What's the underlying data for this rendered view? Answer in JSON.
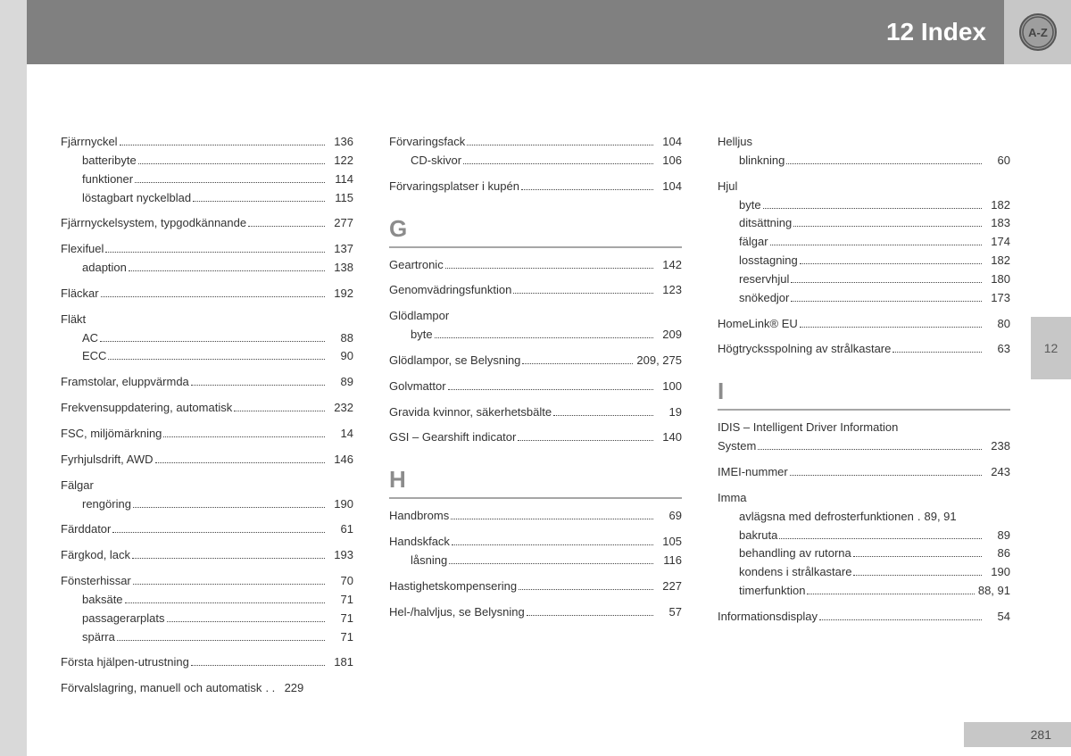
{
  "header": {
    "title": "12 Index",
    "icon_label": "A-Z"
  },
  "side_tab": "12",
  "page_number": "281",
  "colors": {
    "header_bg": "#808080",
    "margin_bg": "#d9d9d9",
    "tab_bg": "#c7c7c7",
    "text": "#333333",
    "letter": "#8c8c8c"
  },
  "columns": [
    {
      "sections": [
        {
          "entries": [
            {
              "label": "Fjärrnyckel",
              "page": "136"
            },
            {
              "label": "batteribyte",
              "page": "122",
              "sub": true
            },
            {
              "label": "funktioner",
              "page": "114",
              "sub": true
            },
            {
              "label": "löstagbart nyckelblad",
              "page": "115",
              "sub": true
            },
            {
              "gap": true
            },
            {
              "label": "Fjärrnyckelsystem, typgodkännande",
              "page": "277"
            },
            {
              "gap": true
            },
            {
              "label": "Flexifuel",
              "page": "137"
            },
            {
              "label": "adaption",
              "page": "138",
              "sub": true
            },
            {
              "gap": true
            },
            {
              "label": "Fläckar",
              "page": "192"
            },
            {
              "gap": true
            },
            {
              "label": "Fläkt",
              "nopages": true
            },
            {
              "label": "AC",
              "page": "88",
              "sub": true
            },
            {
              "label": "ECC",
              "page": "90",
              "sub": true
            },
            {
              "gap": true
            },
            {
              "label": "Framstolar, eluppvärmda",
              "page": "89"
            },
            {
              "gap": true
            },
            {
              "label": "Frekvensuppdatering, automatisk",
              "page": "232"
            },
            {
              "gap": true
            },
            {
              "label": "FSC, miljömärkning",
              "page": "14"
            },
            {
              "gap": true
            },
            {
              "label": "Fyrhjulsdrift, AWD",
              "page": "146"
            },
            {
              "gap": true
            },
            {
              "label": "Fälgar",
              "nopages": true
            },
            {
              "label": "rengöring",
              "page": "190",
              "sub": true
            },
            {
              "gap": true
            },
            {
              "label": "Färddator",
              "page": "61"
            },
            {
              "gap": true
            },
            {
              "label": "Färgkod, lack",
              "page": "193"
            },
            {
              "gap": true
            },
            {
              "label": "Fönsterhissar",
              "page": "70"
            },
            {
              "label": "baksäte",
              "page": "71",
              "sub": true
            },
            {
              "label": "passagerarplats",
              "page": "71",
              "sub": true
            },
            {
              "label": "spärra",
              "page": "71",
              "sub": true
            },
            {
              "gap": true
            },
            {
              "label": "Första hjälpen-utrustning",
              "page": "181"
            },
            {
              "gap": true
            },
            {
              "label": "Förvalslagring, manuell och automatisk",
              "dots_override": ". .",
              "page": "229"
            }
          ]
        }
      ]
    },
    {
      "sections": [
        {
          "entries": [
            {
              "label": "Förvaringsfack",
              "page": "104"
            },
            {
              "label": "CD-skivor",
              "page": "106",
              "sub": true
            },
            {
              "gap": true
            },
            {
              "label": "Förvaringsplatser i kupén",
              "page": "104"
            }
          ]
        },
        {
          "letter": "G",
          "entries": [
            {
              "label": "Geartronic",
              "page": "142"
            },
            {
              "gap": true
            },
            {
              "label": "Genomvädringsfunktion",
              "page": "123"
            },
            {
              "gap": true
            },
            {
              "label": "Glödlampor",
              "nopages": true
            },
            {
              "label": "byte",
              "page": "209",
              "sub": true
            },
            {
              "gap": true
            },
            {
              "label": "Glödlampor, se Belysning",
              "page": "209, 275"
            },
            {
              "gap": true
            },
            {
              "label": "Golvmattor",
              "page": "100"
            },
            {
              "gap": true
            },
            {
              "label": "Gravida kvinnor, säkerhetsbälte",
              "page": "19"
            },
            {
              "gap": true
            },
            {
              "label": "GSI – Gearshift indicator",
              "page": "140"
            }
          ]
        },
        {
          "letter": "H",
          "entries": [
            {
              "label": "Handbroms",
              "page": "69"
            },
            {
              "gap": true
            },
            {
              "label": "Handskfack",
              "page": "105"
            },
            {
              "label": "låsning",
              "page": "116",
              "sub": true
            },
            {
              "gap": true
            },
            {
              "label": "Hastighetskompensering",
              "page": "227"
            },
            {
              "gap": true
            },
            {
              "label": "Hel-/halvljus, se Belysning",
              "page": "57"
            }
          ]
        }
      ]
    },
    {
      "sections": [
        {
          "entries": [
            {
              "label": "Helljus",
              "nopages": true
            },
            {
              "label": "blinkning",
              "page": "60",
              "sub": true
            },
            {
              "gap": true
            },
            {
              "label": "Hjul",
              "nopages": true
            },
            {
              "label": "byte",
              "page": "182",
              "sub": true
            },
            {
              "label": "ditsättning",
              "page": "183",
              "sub": true
            },
            {
              "label": "fälgar",
              "page": "174",
              "sub": true
            },
            {
              "label": "losstagning",
              "page": "182",
              "sub": true
            },
            {
              "label": "reservhjul",
              "page": "180",
              "sub": true
            },
            {
              "label": "snökedjor",
              "page": "173",
              "sub": true
            },
            {
              "gap": true
            },
            {
              "label": "HomeLink® EU",
              "page": "80"
            },
            {
              "gap": true
            },
            {
              "label": "Högtrycksspolning av strålkastare",
              "page": "63"
            }
          ]
        },
        {
          "letter": "I",
          "entries": [
            {
              "label": "IDIS – Intelligent Driver Information System",
              "page": "238",
              "wrap": true
            },
            {
              "gap": true
            },
            {
              "label": "IMEI-nummer",
              "page": "243"
            },
            {
              "gap": true
            },
            {
              "label": "Imma",
              "nopages": true
            },
            {
              "label": "avlägsna med defrosterfunktionen",
              "dots_override": ".",
              "page": "89, 91",
              "sub": true
            },
            {
              "label": "bakruta",
              "page": "89",
              "sub": true
            },
            {
              "label": "behandling av rutorna",
              "page": "86",
              "sub": true
            },
            {
              "label": "kondens i strålkastare",
              "page": "190",
              "sub": true
            },
            {
              "label": "timerfunktion",
              "page": "88, 91",
              "sub": true
            },
            {
              "gap": true
            },
            {
              "label": "Informationsdisplay",
              "page": "54"
            }
          ]
        }
      ]
    }
  ]
}
